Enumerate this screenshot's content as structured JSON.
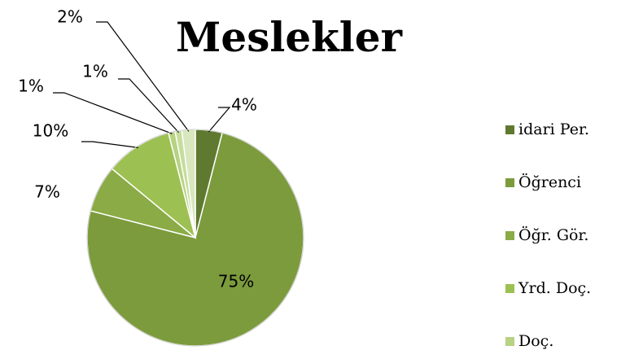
{
  "chart_data": {
    "type": "pie",
    "title": "Meslekler",
    "categories": [
      "idari Per.",
      "Öğrenci",
      "Öğr. Gör.",
      "Yrd. Doç.",
      "Doç.",
      null,
      null
    ],
    "values": [
      4,
      75,
      7,
      10,
      1,
      1,
      2
    ],
    "value_labels": [
      "4%",
      "75%",
      "7%",
      "10%",
      "1%",
      "1%",
      "2%"
    ],
    "colors": [
      "#5f7a30",
      "#7c9b3d",
      "#8aab46",
      "#9dc052",
      "#b6d282",
      "#c6dd9c",
      "#d8e7bd"
    ],
    "legend": "right"
  }
}
